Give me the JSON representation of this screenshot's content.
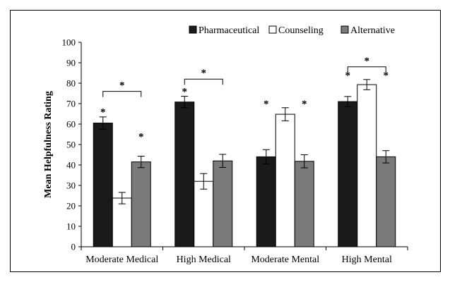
{
  "chart_data": {
    "type": "bar",
    "title": "",
    "xlabel": "",
    "ylabel": "Mean Helpfulness Rating",
    "ylim": [
      0,
      100
    ],
    "yticks": [
      0,
      10,
      20,
      30,
      40,
      50,
      60,
      70,
      80,
      90,
      100
    ],
    "grid": false,
    "legend_position": "top",
    "categories": [
      "Moderate Medical",
      "High Medical",
      "Moderate Mental",
      "High Mental"
    ],
    "series": [
      {
        "name": "Pharmaceutical",
        "color": "#1a1a1a",
        "values": [
          60.5,
          70.8,
          44.0,
          71.0
        ],
        "errors": [
          3.0,
          2.8,
          3.5,
          2.5
        ]
      },
      {
        "name": "Counseling",
        "color": "#ffffff",
        "values": [
          23.8,
          32.0,
          64.8,
          79.3
        ],
        "errors": [
          2.8,
          3.8,
          3.2,
          2.5
        ]
      },
      {
        "name": "Alternative",
        "color": "#7a7a7a",
        "values": [
          41.5,
          42.0,
          41.8,
          44.0
        ],
        "errors": [
          2.8,
          3.2,
          3.2,
          3.0
        ]
      }
    ],
    "significance_marker": "*",
    "annotations": [
      {
        "category": 0,
        "type": "bracket",
        "from_series": 0,
        "to_series": 2,
        "y": 76
      },
      {
        "category": 0,
        "type": "star",
        "series": 0,
        "y": 67
      },
      {
        "category": 0,
        "type": "star",
        "series": 2,
        "y": 55
      },
      {
        "category": 1,
        "type": "bracket",
        "from_series": 0,
        "to_series": 2,
        "y": 82
      },
      {
        "category": 1,
        "type": "star",
        "series": 0,
        "y": 77
      },
      {
        "category": 2,
        "type": "star",
        "series": 0,
        "y": 71
      },
      {
        "category": 2,
        "type": "star",
        "series": 2,
        "y": 71
      },
      {
        "category": 3,
        "type": "bracket",
        "from_series": 0,
        "to_series": 2,
        "y": 88
      },
      {
        "category": 3,
        "type": "star",
        "series": 0,
        "y": 85
      },
      {
        "category": 3,
        "type": "star",
        "series": 2,
        "y": 85
      }
    ]
  }
}
